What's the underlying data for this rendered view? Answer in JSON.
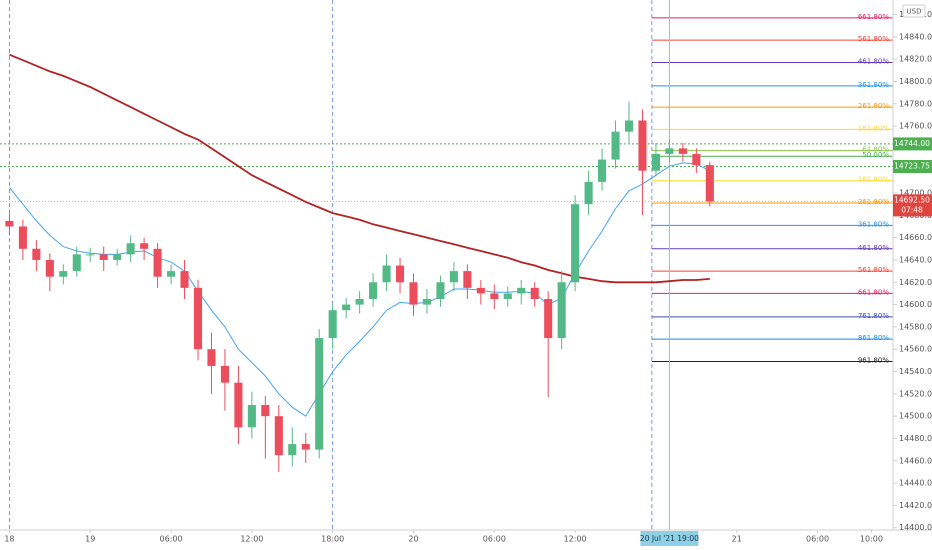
{
  "chart_data": {
    "type": "candlestick",
    "currency": "USD",
    "xlim": [
      -6.7,
      59.6
    ],
    "ylim": [
      14389,
      14873
    ],
    "xticks": [
      {
        "value": -6,
        "label": "18"
      },
      {
        "value": 0,
        "label": "19"
      },
      {
        "value": 6,
        "label": "06:00"
      },
      {
        "value": 12,
        "label": "12:00"
      },
      {
        "value": 18,
        "label": "18:00"
      },
      {
        "value": 24,
        "label": "20"
      },
      {
        "value": 30,
        "label": "06:00"
      },
      {
        "value": 36,
        "label": "12:00"
      },
      {
        "value": 48,
        "label": "21"
      },
      {
        "value": 54,
        "label": "06:00"
      },
      {
        "value": 58,
        "label": "10:00"
      }
    ],
    "yticks": [
      {
        "value": 14400,
        "label": "14400.00"
      },
      {
        "value": 14420,
        "label": "14420.00"
      },
      {
        "value": 14440,
        "label": "14440.00"
      },
      {
        "value": 14460,
        "label": "14460.00"
      },
      {
        "value": 14480,
        "label": "14480.00"
      },
      {
        "value": 14500,
        "label": "14500.00"
      },
      {
        "value": 14520,
        "label": "14520.00"
      },
      {
        "value": 14540,
        "label": "14540.00"
      },
      {
        "value": 14560,
        "label": "14560.00"
      },
      {
        "value": 14580,
        "label": "14580.00"
      },
      {
        "value": 14600,
        "label": "14600.00"
      },
      {
        "value": 14620,
        "label": "14620.00"
      },
      {
        "value": 14640,
        "label": "14640.00"
      },
      {
        "value": 14660,
        "label": "14660.00"
      },
      {
        "value": 14680,
        "label": "14680.00"
      },
      {
        "value": 14700,
        "label": "14700.00"
      },
      {
        "value": 14720,
        "label": "14720.00"
      },
      {
        "value": 14760,
        "label": "14760.00"
      },
      {
        "value": 14780,
        "label": "14780.00"
      },
      {
        "value": 14800,
        "label": "14800.00"
      },
      {
        "value": 14820,
        "label": "14820.00"
      },
      {
        "value": 14840,
        "label": "14840.00"
      },
      {
        "value": 14860,
        "label": "14860.00"
      }
    ],
    "up_color": "#53b987",
    "down_color": "#eb4d5c",
    "x": [
      -6,
      -5,
      -4,
      -3,
      -2,
      -1,
      0,
      1,
      2,
      3,
      4,
      5,
      6,
      7,
      8,
      9,
      10,
      11,
      12,
      13,
      14,
      15,
      16,
      17,
      18,
      19,
      20,
      21,
      22,
      23,
      24,
      25,
      26,
      27,
      28,
      29,
      30,
      31,
      32,
      33,
      34,
      35,
      36,
      37,
      38,
      39,
      40,
      41,
      42,
      43,
      44,
      45,
      46
    ],
    "open": [
      14675,
      14670,
      14650,
      14640,
      14625,
      14630,
      14645,
      14645,
      14640,
      14645,
      14655,
      14650,
      14625,
      14630,
      14615,
      14560,
      14545,
      14530,
      14490,
      14510,
      14500,
      14465,
      14475,
      14470,
      14570,
      14595,
      14600,
      14605,
      14620,
      14635,
      14620,
      14600,
      14605,
      14620,
      14630,
      14615,
      14610,
      14605,
      14610,
      14615,
      14605,
      14570,
      14620,
      14690,
      14710,
      14730,
      14755,
      14765,
      14720,
      14735,
      14740,
      14735,
      14725
    ],
    "high": [
      14681,
      14676,
      14658,
      14646,
      14636,
      14652,
      14651,
      14652,
      14650,
      14662,
      14660,
      14655,
      14636,
      14640,
      14622,
      14575,
      14560,
      14545,
      14522,
      14518,
      14510,
      14490,
      14485,
      14578,
      14600,
      14606,
      14612,
      14628,
      14645,
      14642,
      14628,
      14614,
      14626,
      14638,
      14636,
      14622,
      14618,
      14616,
      14622,
      14620,
      14612,
      14630,
      14698,
      14720,
      14740,
      14765,
      14782,
      14775,
      14745,
      14748,
      14745,
      14740,
      14728
    ],
    "low": [
      14662,
      14640,
      14630,
      14612,
      14618,
      14625,
      14638,
      14630,
      14635,
      14638,
      14640,
      14615,
      14618,
      14605,
      14550,
      14520,
      14505,
      14475,
      14480,
      14462,
      14450,
      14455,
      14458,
      14462,
      14560,
      14588,
      14592,
      14598,
      14612,
      14610,
      14590,
      14592,
      14598,
      14612,
      14605,
      14600,
      14596,
      14598,
      14600,
      14598,
      14517,
      14560,
      14612,
      14680,
      14702,
      14722,
      14745,
      14680,
      14715,
      14728,
      14728,
      14718,
      14688
    ],
    "close": [
      14670,
      14650,
      14640,
      14625,
      14630,
      14645,
      14645,
      14640,
      14645,
      14655,
      14650,
      14625,
      14630,
      14615,
      14560,
      14545,
      14530,
      14490,
      14510,
      14500,
      14465,
      14475,
      14470,
      14570,
      14595,
      14600,
      14605,
      14620,
      14635,
      14620,
      14600,
      14605,
      14620,
      14630,
      14615,
      14610,
      14605,
      14610,
      14615,
      14605,
      14570,
      14620,
      14690,
      14710,
      14730,
      14755,
      14765,
      14720,
      14735,
      14740,
      14735,
      14725,
      14692.5
    ],
    "lines": [
      {
        "color": "#b22222",
        "values": [
          14824,
          14819,
          14814,
          14809,
          14805,
          14800,
          14795,
          14789,
          14783,
          14777,
          14771,
          14765,
          14759,
          14753,
          14748,
          14740,
          14732,
          14724,
          14716,
          14710,
          14704,
          14698,
          14692,
          14687,
          14682,
          14679,
          14676,
          14672,
          14669,
          14666,
          14663,
          14660,
          14657,
          14654,
          14651,
          14648,
          14645,
          14642,
          14638,
          14635,
          14631,
          14628,
          14625,
          14623,
          14621,
          14620,
          14620,
          14620,
          14620,
          14621,
          14622,
          14622,
          14623
        ]
      },
      {
        "color": "#42a5f5",
        "values": [
          14705,
          14690,
          14675,
          14662,
          14652,
          14648,
          14646,
          14645,
          14645,
          14647,
          14648,
          14642,
          14638,
          14630,
          14612,
          14595,
          14580,
          14560,
          14548,
          14536,
          14520,
          14508,
          14500,
          14520,
          14540,
          14555,
          14567,
          14580,
          14595,
          14602,
          14601,
          14602,
          14607,
          14614,
          14614,
          14613,
          14611,
          14611,
          14612,
          14610,
          14600,
          14606,
          14628,
          14648,
          14666,
          14686,
          14702,
          14708,
          14716,
          14724,
          14727,
          14726,
          14720
        ]
      }
    ],
    "vlines": [
      -6,
      18,
      41.7
    ],
    "crosshair": {
      "x": 43,
      "label": "20 Jul '21  19:00"
    },
    "hlines": [
      {
        "value": 14744,
        "label": "14744.00",
        "color": "#4caf50"
      },
      {
        "value": 14723.75,
        "label": "14723.75",
        "color": "#4caf50"
      }
    ],
    "last_price": {
      "value": 14692.5,
      "label": "14692.50",
      "countdown": "07:48",
      "color": "#e0443e"
    },
    "fib_from_x": 41.7,
    "fib_levels": [
      {
        "label": "661.80%",
        "price": 14857,
        "color": "#e91e63"
      },
      {
        "label": "561.80%",
        "price": 14837,
        "color": "#f44336"
      },
      {
        "label": "461.80%",
        "price": 14817,
        "color": "#673ab7"
      },
      {
        "label": "361.80%",
        "price": 14796,
        "color": "#2196f3"
      },
      {
        "label": "261.80%",
        "price": 14777,
        "color": "#ff9800"
      },
      {
        "label": "161.80%",
        "price": 14757,
        "color": "#fdd835"
      },
      {
        "label": "61.80%",
        "price": 14738,
        "color": "#8bc34a"
      },
      {
        "label": "50.00%",
        "price": 14733,
        "color": "#4caf50"
      },
      {
        "label": "161.80%",
        "price": 14711,
        "color": "#fdd835"
      },
      {
        "label": "261.80%",
        "price": 14691,
        "color": "#ff9800"
      },
      {
        "label": "361.80%",
        "price": 14671,
        "color": "#2196f3"
      },
      {
        "label": "461.80%",
        "price": 14650,
        "color": "#673ab7"
      },
      {
        "label": "561.80%",
        "price": 14630,
        "color": "#f44336"
      },
      {
        "label": "661.80%",
        "price": 14610,
        "color": "#e91e63"
      },
      {
        "label": "761.80%",
        "price": 14589,
        "color": "#3f51b5"
      },
      {
        "label": "861.80%",
        "price": 14569,
        "color": "#1e88e5"
      },
      {
        "label": "961.80%",
        "price": 14549,
        "color": "#222222"
      }
    ]
  }
}
